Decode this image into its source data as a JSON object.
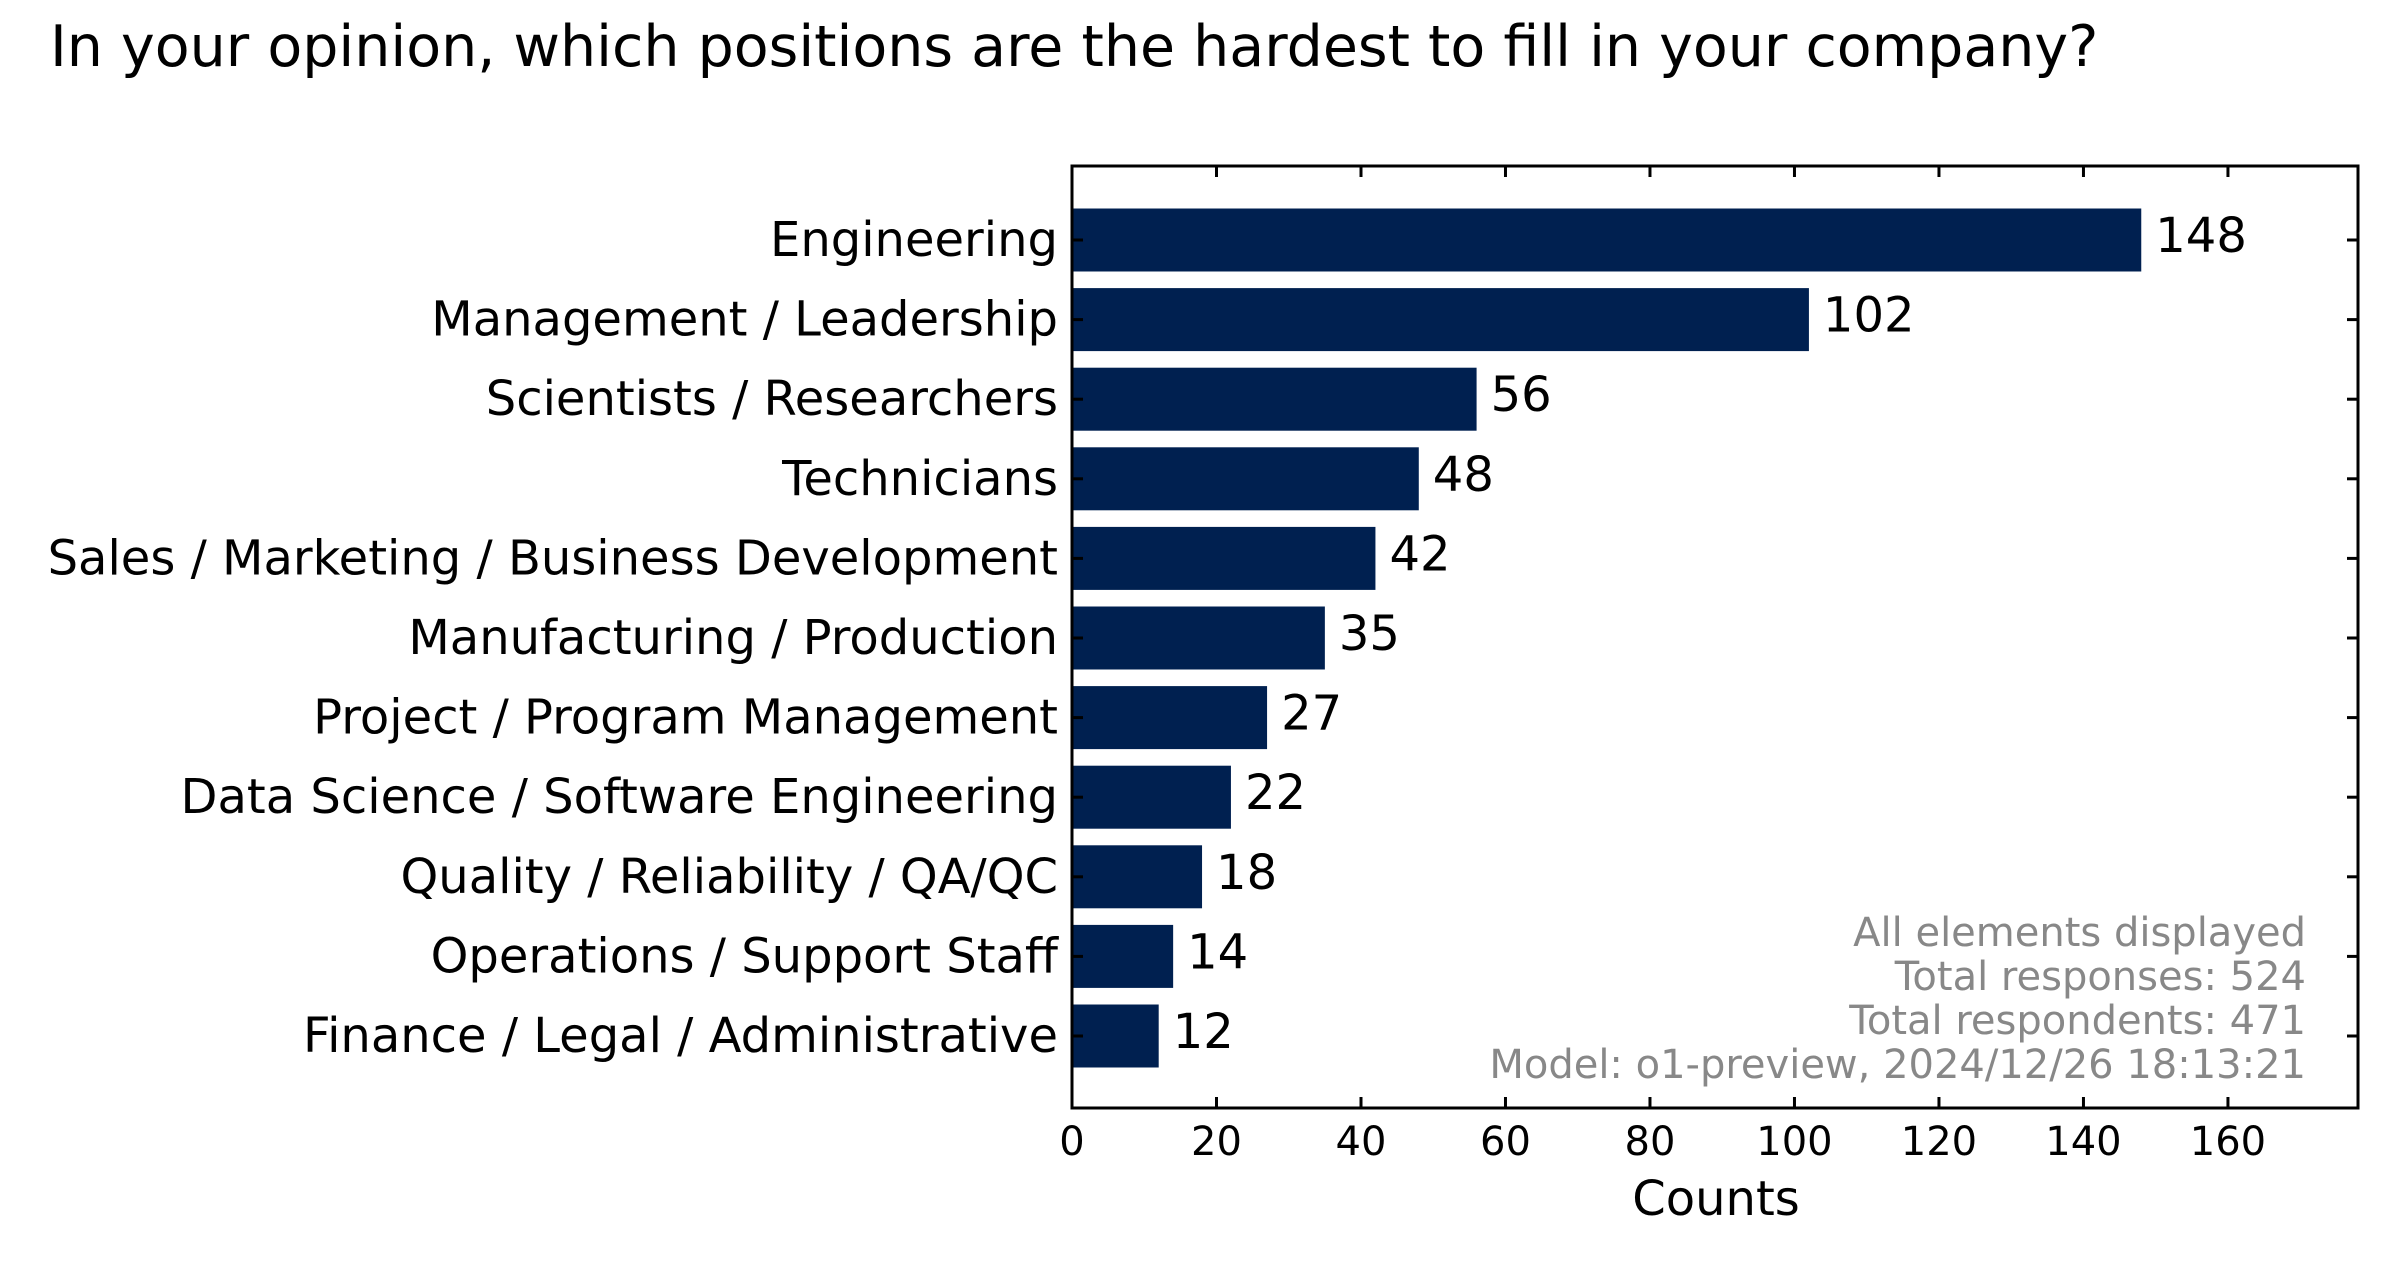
{
  "chart_data": {
    "type": "bar",
    "orientation": "horizontal",
    "title": "In your opinion, which positions are the hardest to fill in your company?",
    "xlabel": "Counts",
    "ylabel": "",
    "categories": [
      "Engineering",
      "Management / Leadership",
      "Scientists / Researchers",
      "Technicians",
      "Sales / Marketing / Business Development",
      "Manufacturing / Production",
      "Project / Program Management",
      "Data Science / Software Engineering",
      "Quality / Reliability / QA/QC",
      "Operations / Support Staff",
      "Finance / Legal / Administrative"
    ],
    "values": [
      148,
      102,
      56,
      48,
      42,
      35,
      27,
      22,
      18,
      14,
      12
    ],
    "xlim": [
      0,
      178
    ],
    "xticks": [
      0,
      20,
      40,
      60,
      80,
      100,
      120,
      140,
      160
    ],
    "grid": false,
    "legend": "none",
    "bar_color": "#002050",
    "annotations": [
      "All elements displayed",
      "Total responses: 524",
      "Total respondents: 471",
      "Model: o1-preview, 2024/12/26 18:13:21"
    ],
    "annotation_color": "#888888"
  }
}
